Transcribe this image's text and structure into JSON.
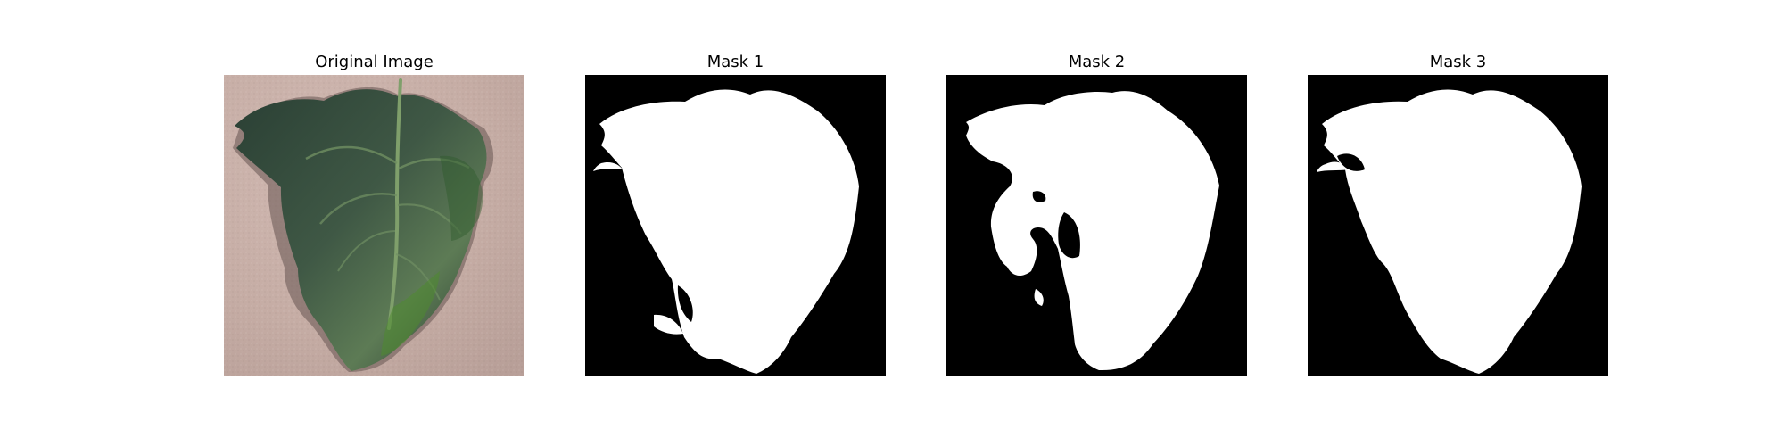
{
  "panels": [
    {
      "title": "Original Image"
    },
    {
      "title": "Mask 1"
    },
    {
      "title": "Mask 2"
    },
    {
      "title": "Mask 3"
    }
  ],
  "colors": {
    "background": "#c9b0a8",
    "leaf_dark": "#2f4437",
    "leaf_mid": "#4f6a4f",
    "leaf_light": "#6f8e62",
    "shadow": "#6a5a57",
    "mask_black": "#000000",
    "mask_white": "#ffffff"
  }
}
